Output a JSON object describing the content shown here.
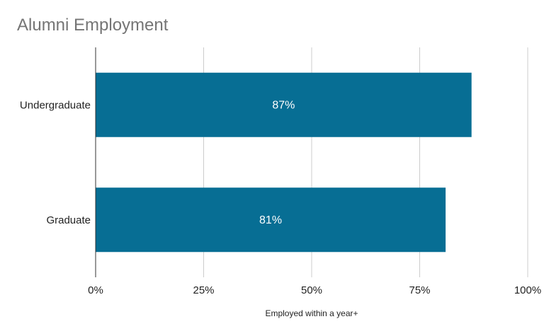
{
  "chart_data": {
    "type": "bar",
    "orientation": "horizontal",
    "title": "Alumni Employment",
    "xlabel": "Employed within a year+",
    "ylabel": "",
    "categories": [
      "Undergraduate",
      "Graduate"
    ],
    "values": [
      87,
      81
    ],
    "data_labels": [
      "87%",
      "81%"
    ],
    "xlim": [
      0,
      100
    ],
    "x_ticks": [
      "0%",
      "25%",
      "50%",
      "75%",
      "100%"
    ],
    "grid": true,
    "bar_color": "#076e94",
    "label_color": "#ffffff"
  }
}
